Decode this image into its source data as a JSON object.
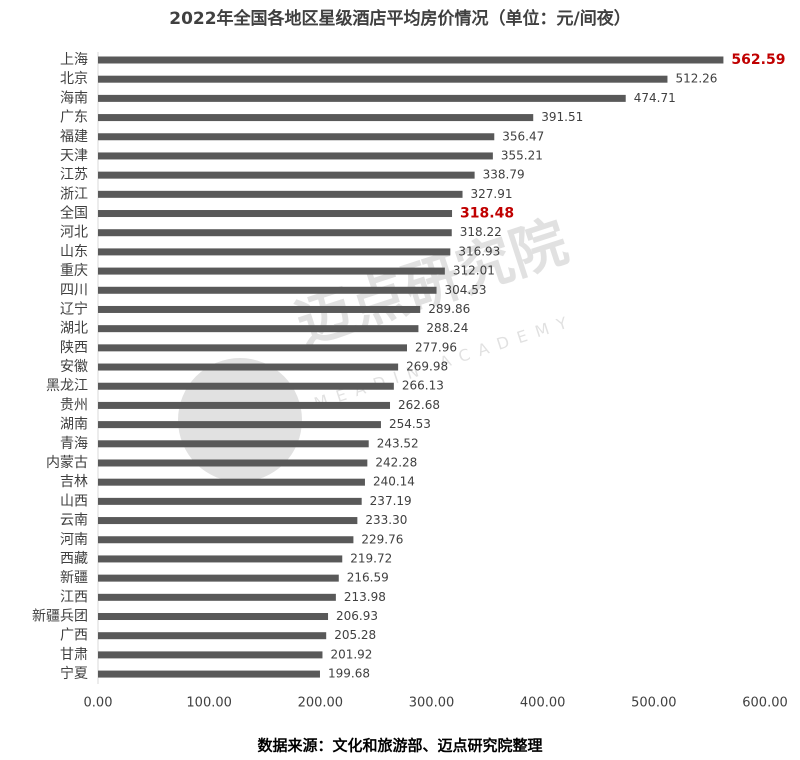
{
  "chart_data": {
    "type": "hbar",
    "title": "2022年全国各地区星级酒店平均房价情况（单位：元/间夜）",
    "categories": [
      "上海",
      "北京",
      "海南",
      "广东",
      "福建",
      "天津",
      "江苏",
      "浙江",
      "全国",
      "河北",
      "山东",
      "重庆",
      "四川",
      "辽宁",
      "湖北",
      "陕西",
      "安徽",
      "黑龙江",
      "贵州",
      "湖南",
      "青海",
      "内蒙古",
      "吉林",
      "山西",
      "云南",
      "河南",
      "西藏",
      "新疆",
      "江西",
      "新疆兵团",
      "广西",
      "甘肃",
      "宁夏"
    ],
    "values": [
      562.59,
      512.26,
      474.71,
      391.51,
      356.47,
      355.21,
      338.79,
      327.91,
      318.48,
      318.22,
      316.93,
      312.01,
      304.53,
      289.86,
      288.24,
      277.96,
      269.98,
      266.13,
      262.68,
      254.53,
      243.52,
      242.28,
      240.14,
      237.19,
      233.3,
      229.76,
      219.72,
      216.59,
      213.98,
      206.93,
      205.28,
      201.92,
      199.68
    ],
    "value_labels": [
      "562.59",
      "512.26",
      "474.71",
      "391.51",
      "356.47",
      "355.21",
      "338.79",
      "327.91",
      "318.48",
      "318.22",
      "316.93",
      "312.01",
      "304.53",
      "289.86",
      "288.24",
      "277.96",
      "269.98",
      "266.13",
      "262.68",
      "254.53",
      "243.52",
      "242.28",
      "240.14",
      "237.19",
      "233.30",
      "229.76",
      "219.72",
      "216.59",
      "213.98",
      "206.93",
      "205.28",
      "201.92",
      "199.68"
    ],
    "color": "#595959",
    "value_label_colors": [
      "#c00000",
      "#404040",
      "#404040",
      "#404040",
      "#404040",
      "#404040",
      "#404040",
      "#404040",
      "#c00000",
      "#404040",
      "#404040",
      "#404040",
      "#404040",
      "#404040",
      "#404040",
      "#404040",
      "#404040",
      "#404040",
      "#404040",
      "#404040",
      "#404040",
      "#404040",
      "#404040",
      "#404040",
      "#404040",
      "#404040",
      "#404040",
      "#404040",
      "#404040",
      "#404040",
      "#404040",
      "#404040",
      "#404040"
    ],
    "xlim": [
      0,
      600
    ],
    "xticks": [
      {
        "value": 0,
        "label": "0.00"
      },
      {
        "value": 100,
        "label": "100.00"
      },
      {
        "value": 200,
        "label": "200.00"
      },
      {
        "value": 300,
        "label": "300.00"
      },
      {
        "value": 400,
        "label": "400.00"
      },
      {
        "value": 500,
        "label": "500.00"
      },
      {
        "value": 600,
        "label": "600.00"
      }
    ],
    "grid": false,
    "source": "数据来源：文化和旅游部、迈点研究院整理",
    "watermark": {
      "text": "迈点研究院",
      "subtext": "MEADIN ACADEMY"
    }
  }
}
